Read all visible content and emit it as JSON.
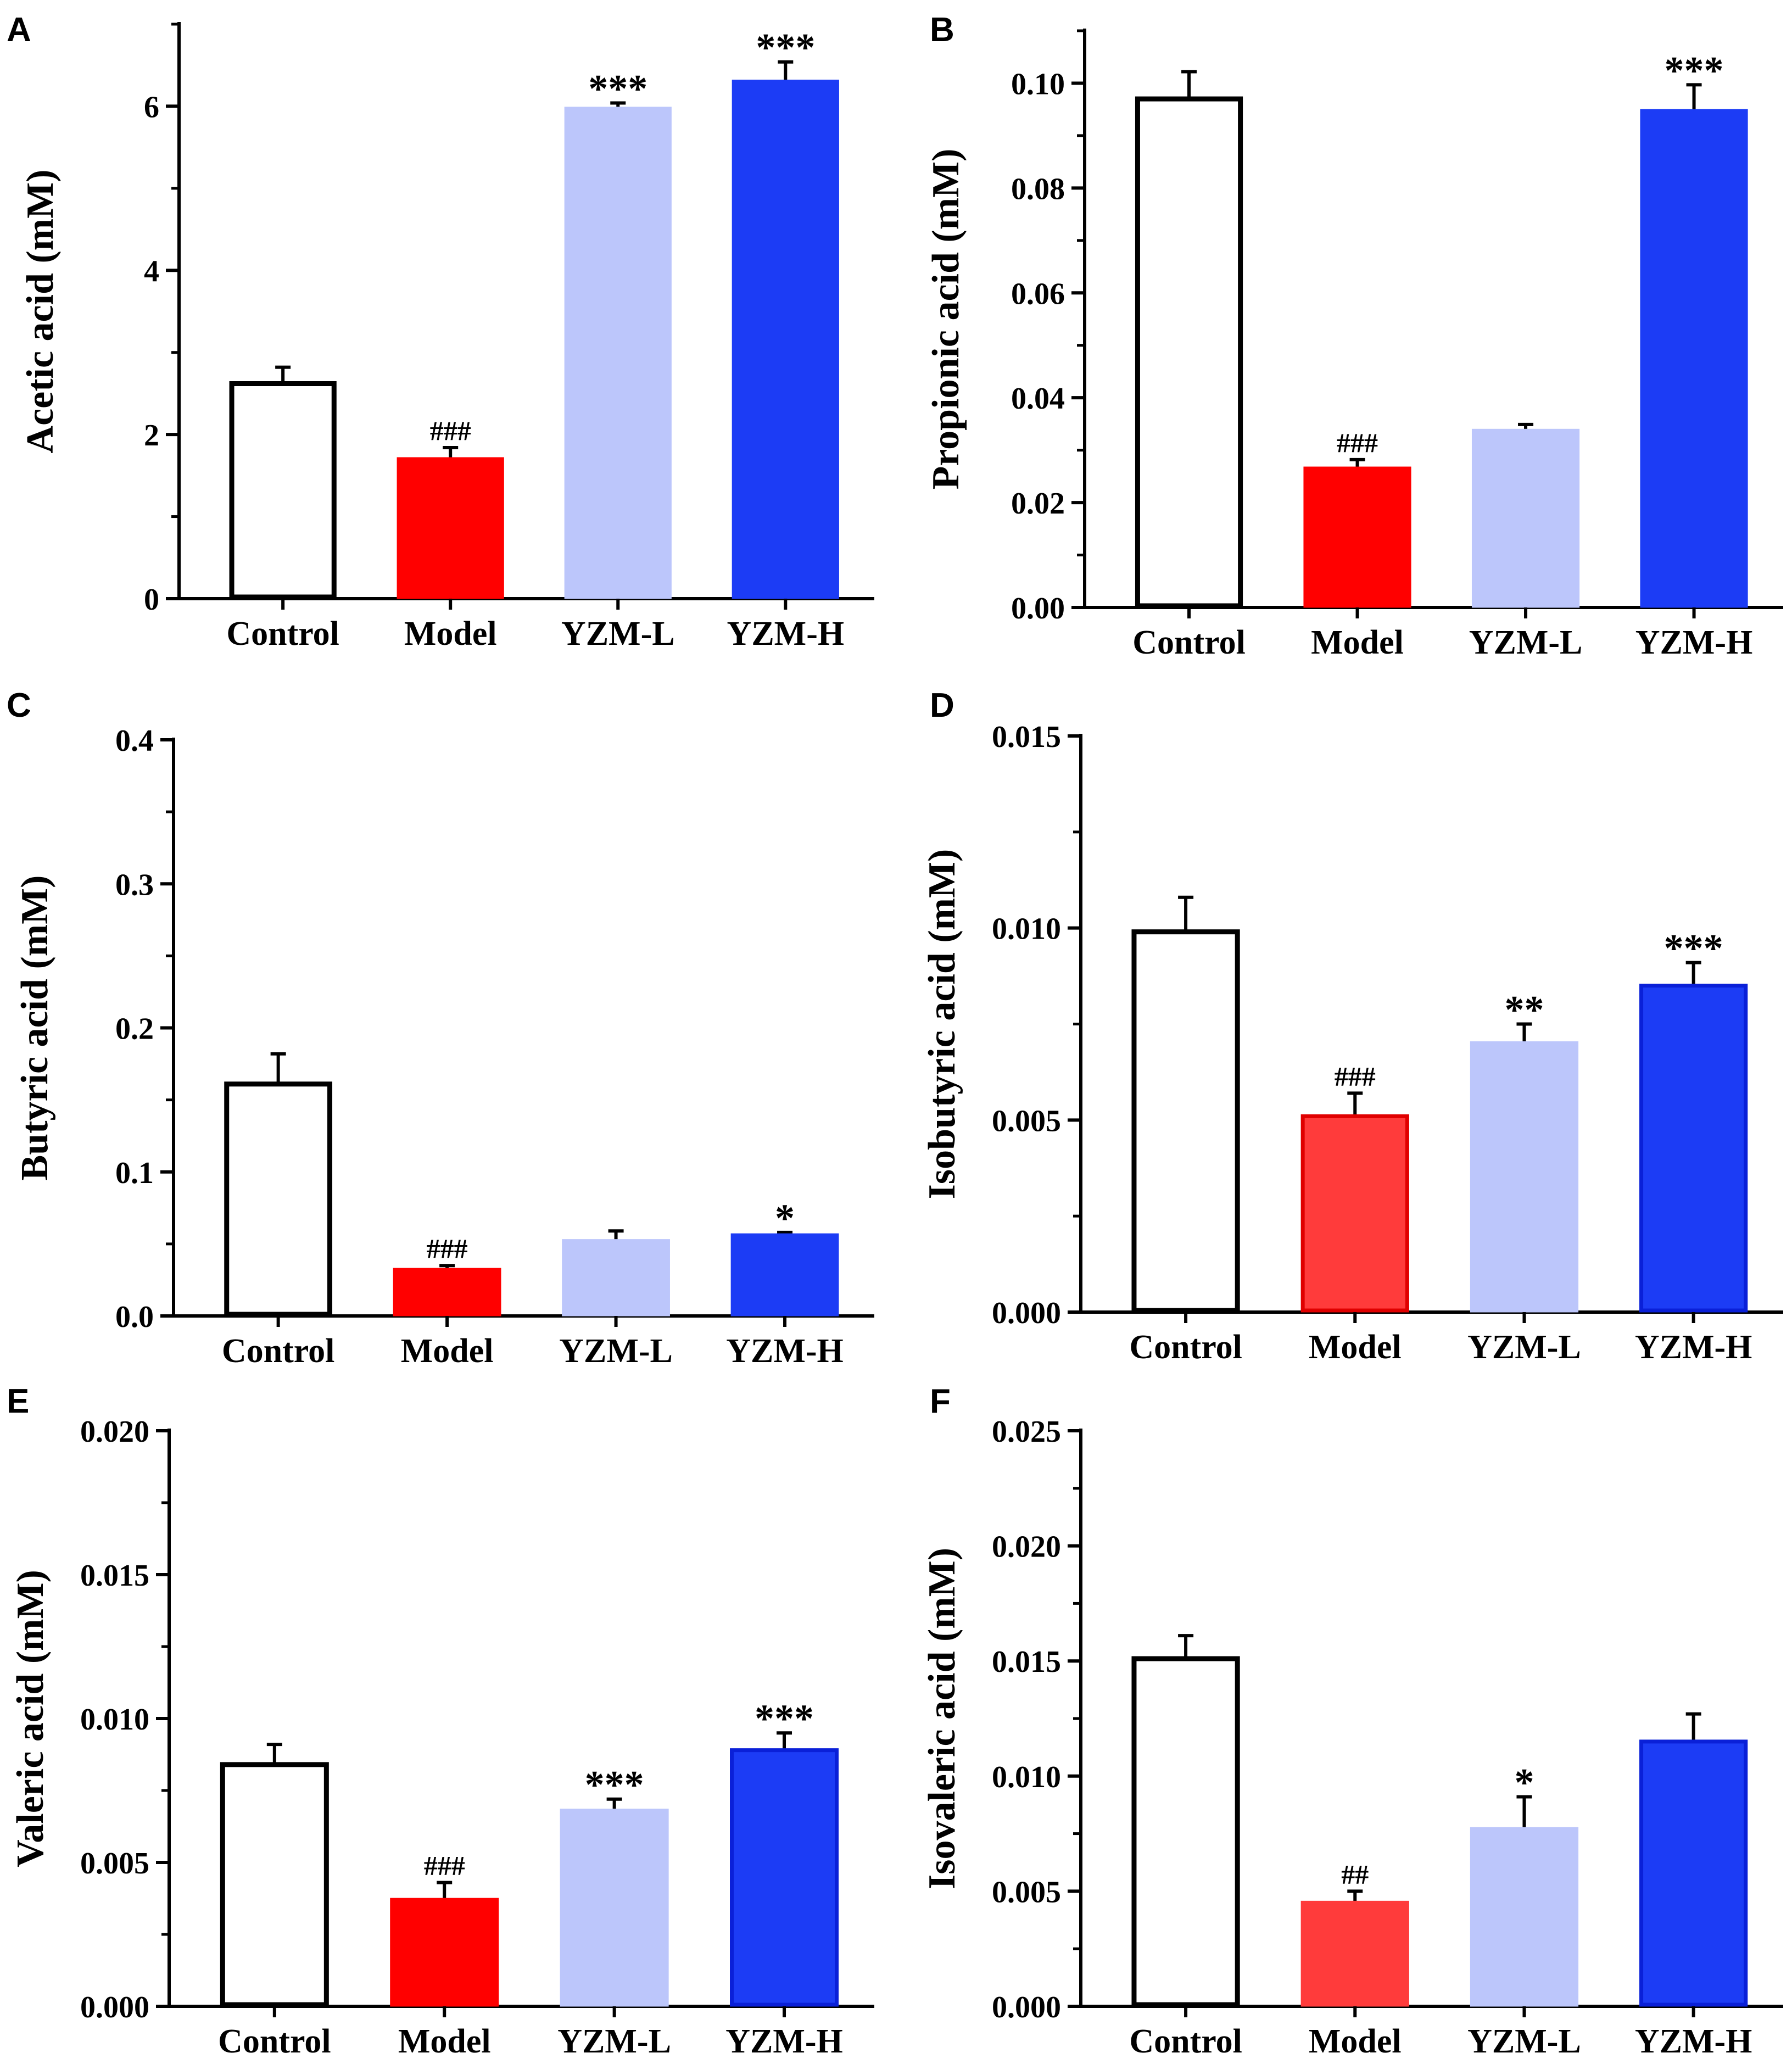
{
  "chart_data": [
    {
      "type": "bar",
      "panel": "A",
      "ylabel": "Acetic acid (mM)",
      "categories": [
        "Control",
        "Model",
        "YZM-L",
        "YZM-H"
      ],
      "values": [
        2.62,
        1.7,
        5.97,
        6.3
      ],
      "errors": [
        0.2,
        0.14,
        0.07,
        0.24
      ],
      "annotations": [
        "",
        "###",
        "***",
        "***"
      ],
      "ylim": [
        0,
        7
      ],
      "yticks": [
        0,
        2,
        4,
        6
      ],
      "ytick_labels": [
        "0",
        "2",
        "4",
        "6"
      ],
      "colors": [
        "#ffffff",
        "#ff0000",
        "#bcc6fb",
        "#1c3cf5"
      ],
      "edge_colors": [
        "#000000",
        "#ff0000",
        "#bcc6fb",
        "#1c3cf5"
      ]
    },
    {
      "type": "bar",
      "panel": "B",
      "ylabel": "Propionic acid (mM)",
      "categories": [
        "Control",
        "Model",
        "YZM-L",
        "YZM-H"
      ],
      "values": [
        0.097,
        0.0265,
        0.0337,
        0.0947
      ],
      "errors": [
        0.0052,
        0.0017,
        0.0012,
        0.005
      ],
      "annotations": [
        "",
        "###",
        "",
        "***"
      ],
      "ylim": [
        0,
        0.11
      ],
      "yticks": [
        0,
        0.02,
        0.04,
        0.06,
        0.08,
        0.1
      ],
      "ytick_labels": [
        "0.00",
        "0.02",
        "0.04",
        "0.06",
        "0.08",
        "0.10"
      ],
      "colors": [
        "#ffffff",
        "#ff0000",
        "#bcc6fb",
        "#1c3cf5"
      ],
      "edge_colors": [
        "#000000",
        "#ff0000",
        "#bcc6fb",
        "#1c3cf5"
      ]
    },
    {
      "type": "bar",
      "panel": "C",
      "ylabel": "Butyric acid (mM)",
      "categories": [
        "Control",
        "Model",
        "YZM-L",
        "YZM-H"
      ],
      "values": [
        0.161,
        0.032,
        0.052,
        0.056
      ],
      "errors": [
        0.021,
        0.003,
        0.007,
        0.002
      ],
      "annotations": [
        "",
        "###",
        "",
        "*"
      ],
      "ylim": [
        0,
        0.4
      ],
      "yticks": [
        0,
        0.1,
        0.2,
        0.3,
        0.4
      ],
      "ytick_labels": [
        "0.0",
        "0.1",
        "0.2",
        "0.3",
        "0.4"
      ],
      "colors": [
        "#ffffff",
        "#ff0000",
        "#bcc6fb",
        "#1c3cf5"
      ],
      "edge_colors": [
        "#000000",
        "#ff0000",
        "#bcc6fb",
        "#1c3cf5"
      ]
    },
    {
      "type": "bar",
      "panel": "D",
      "ylabel": "Isobutyric acid (mM)",
      "categories": [
        "Control",
        "Model",
        "YZM-L",
        "YZM-H"
      ],
      "values": [
        0.0099,
        0.0051,
        0.007,
        0.0085
      ],
      "errors": [
        0.0009,
        0.0006,
        0.0005,
        0.0006
      ],
      "annotations": [
        "",
        "###",
        "**",
        "***"
      ],
      "ylim": [
        0,
        0.015
      ],
      "yticks": [
        0,
        0.005,
        0.01,
        0.015
      ],
      "ytick_labels": [
        "0.000",
        "0.005",
        "0.010",
        "0.015"
      ],
      "colors": [
        "#ffffff",
        "#ff3b3b",
        "#bcc6fb",
        "#1c3cf5"
      ],
      "edge_colors": [
        "#000000",
        "#e00000",
        "#bcc6fb",
        "#0a20d8"
      ]
    },
    {
      "type": "bar",
      "panel": "E",
      "ylabel": "Valeric acid (mM)",
      "categories": [
        "Control",
        "Model",
        "YZM-L",
        "YZM-H"
      ],
      "values": [
        0.0084,
        0.0037,
        0.0068,
        0.0089
      ],
      "errors": [
        0.0007,
        0.0006,
        0.0004,
        0.0006
      ],
      "annotations": [
        "",
        "###",
        "***",
        "***"
      ],
      "ylim": [
        0,
        0.02
      ],
      "yticks": [
        0,
        0.005,
        0.01,
        0.015,
        0.02
      ],
      "ytick_labels": [
        "0.000",
        "0.005",
        "0.010",
        "0.015",
        "0.020"
      ],
      "colors": [
        "#ffffff",
        "#ff0000",
        "#bcc6fb",
        "#1c3cf5"
      ],
      "edge_colors": [
        "#000000",
        "#ff0000",
        "#bcc6fb",
        "#0a20d8"
      ]
    },
    {
      "type": "bar",
      "panel": "F",
      "ylabel": "Isovaleric acid (mM)",
      "categories": [
        "Control",
        "Model",
        "YZM-L",
        "YZM-H"
      ],
      "values": [
        0.0151,
        0.0045,
        0.0077,
        0.0115
      ],
      "errors": [
        0.001,
        0.0005,
        0.0014,
        0.0012
      ],
      "annotations": [
        "",
        "##",
        "*",
        ""
      ],
      "ylim": [
        0,
        0.025
      ],
      "yticks": [
        0,
        0.005,
        0.01,
        0.015,
        0.02,
        0.025
      ],
      "ytick_labels": [
        "0.000",
        "0.005",
        "0.010",
        "0.015",
        "0.020",
        "0.025"
      ],
      "colors": [
        "#ffffff",
        "#ff3b3b",
        "#bcc6fb",
        "#1c3cf5"
      ],
      "edge_colors": [
        "#000000",
        "#ff3b3b",
        "#bcc6fb",
        "#0a20d8"
      ]
    }
  ]
}
